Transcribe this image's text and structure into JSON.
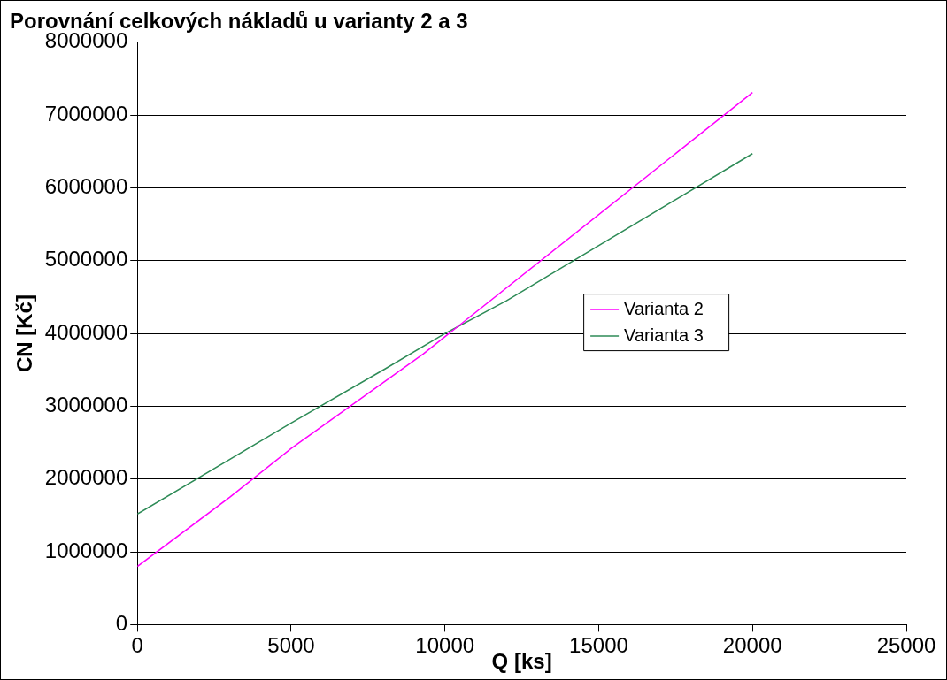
{
  "chart_data": {
    "type": "line",
    "title": "Porovnání celkových nákladů u varianty 2 a 3",
    "xlabel": "Q [ks]",
    "ylabel": "CN [Kč]",
    "xlim": [
      0,
      25000
    ],
    "xticks": [
      0,
      5000,
      10000,
      15000,
      20000,
      25000
    ],
    "ylim": [
      0,
      8000000
    ],
    "yticks": [
      0,
      1000000,
      2000000,
      3000000,
      4000000,
      5000000,
      6000000,
      7000000,
      8000000
    ],
    "grid": "y",
    "legend": "right",
    "marker": "none",
    "line_style": "solid",
    "series": [
      {
        "name": "Varianta 2",
        "color": "#ff00ff",
        "x": [
          0,
          3000,
          5000,
          9300,
          20000
        ],
        "values": [
          800000,
          1750000,
          2420000,
          3720000,
          7310000
        ]
      },
      {
        "name": "Varianta 3",
        "color": "#2e8b57",
        "x": [
          0,
          5000,
          8000,
          10000,
          12000,
          20000
        ],
        "values": [
          1520000,
          2770000,
          3500000,
          4000000,
          4450000,
          6470000
        ]
      }
    ]
  }
}
